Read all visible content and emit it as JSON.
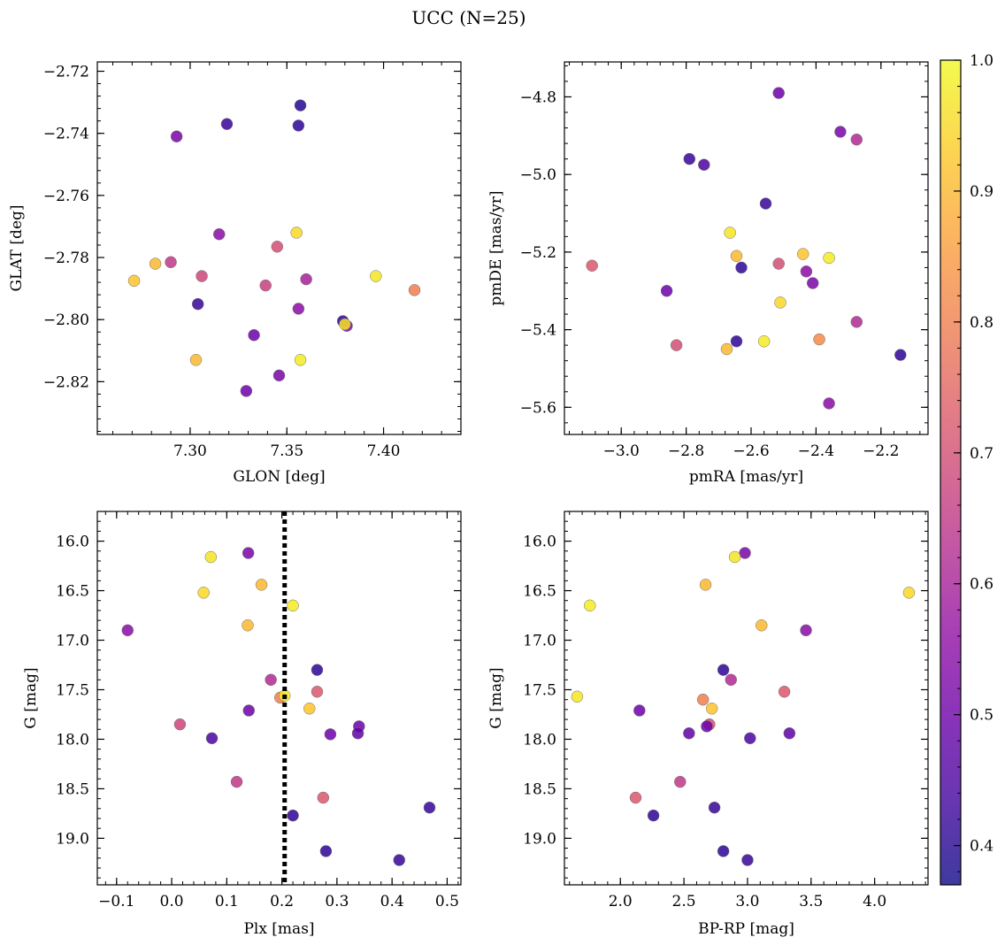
{
  "figure": {
    "title": "UCC (N=25)"
  },
  "colorbar": {
    "range": [
      0.37,
      1.0
    ],
    "ticks": [
      0.4,
      0.5,
      0.6,
      0.7,
      0.8,
      0.9,
      1.0
    ],
    "tick_labels": [
      "0.4",
      "0.5",
      "0.6",
      "0.7",
      "0.8",
      "0.9",
      "1.0"
    ],
    "colormap": "plasma"
  },
  "chart_data": [
    {
      "type": "scatter",
      "xlabel": "GLON [deg]",
      "ylabel": "GLAT [deg]",
      "xlim": [
        7.252,
        7.44
      ],
      "ylim": [
        -2.837,
        -2.717
      ],
      "yinvert": false,
      "xticks": [
        7.3,
        7.35,
        7.4
      ],
      "xtick_labels": [
        "7.30",
        "7.35",
        "7.40"
      ],
      "yticks": [
        -2.72,
        -2.74,
        -2.76,
        -2.78,
        -2.8,
        -2.82
      ],
      "ytick_labels": [
        "−2.72",
        "−2.74",
        "−2.76",
        "−2.78",
        "−2.80",
        "−2.82"
      ],
      "points": [
        {
          "x": 7.357,
          "y": -2.731,
          "c": 0.4
        },
        {
          "x": 7.319,
          "y": -2.737,
          "c": 0.42
        },
        {
          "x": 7.356,
          "y": -2.7375,
          "c": 0.41
        },
        {
          "x": 7.293,
          "y": -2.741,
          "c": 0.52
        },
        {
          "x": 7.315,
          "y": -2.7725,
          "c": 0.55
        },
        {
          "x": 7.355,
          "y": -2.772,
          "c": 0.95
        },
        {
          "x": 7.345,
          "y": -2.7765,
          "c": 0.7
        },
        {
          "x": 7.282,
          "y": -2.782,
          "c": 0.9
        },
        {
          "x": 7.29,
          "y": -2.7815,
          "c": 0.65
        },
        {
          "x": 7.306,
          "y": -2.786,
          "c": 0.68
        },
        {
          "x": 7.271,
          "y": -2.7875,
          "c": 0.92
        },
        {
          "x": 7.396,
          "y": -2.786,
          "c": 0.97
        },
        {
          "x": 7.36,
          "y": -2.787,
          "c": 0.6
        },
        {
          "x": 7.339,
          "y": -2.789,
          "c": 0.67
        },
        {
          "x": 7.416,
          "y": -2.7905,
          "c": 0.8
        },
        {
          "x": 7.304,
          "y": -2.795,
          "c": 0.42
        },
        {
          "x": 7.356,
          "y": -2.7965,
          "c": 0.55
        },
        {
          "x": 7.379,
          "y": -2.8005,
          "c": 0.41
        },
        {
          "x": 7.381,
          "y": -2.802,
          "c": 0.53
        },
        {
          "x": 7.38,
          "y": -2.8015,
          "c": 0.97
        },
        {
          "x": 7.333,
          "y": -2.805,
          "c": 0.5
        },
        {
          "x": 7.303,
          "y": -2.813,
          "c": 0.9
        },
        {
          "x": 7.357,
          "y": -2.813,
          "c": 0.98
        },
        {
          "x": 7.346,
          "y": -2.818,
          "c": 0.52
        },
        {
          "x": 7.329,
          "y": -2.823,
          "c": 0.5
        }
      ]
    },
    {
      "type": "scatter",
      "xlabel": "pmRA [mas/yr]",
      "ylabel": "pmDE [mas/yr]",
      "xlim": [
        -3.175,
        -2.055
      ],
      "ylim": [
        -5.67,
        -4.71
      ],
      "yinvert": false,
      "xticks": [
        -3.0,
        -2.8,
        -2.6,
        -2.4,
        -2.2
      ],
      "xtick_labels": [
        "−3.0",
        "−2.8",
        "−2.6",
        "−2.4",
        "−2.2"
      ],
      "yticks": [
        -4.8,
        -5.0,
        -5.2,
        -5.4,
        -5.6
      ],
      "ytick_labels": [
        "−4.8",
        "−5.0",
        "−5.2",
        "−5.4",
        "−5.6"
      ],
      "points": [
        {
          "x": -2.515,
          "y": -4.79,
          "c": 0.5
        },
        {
          "x": -2.325,
          "y": -4.89,
          "c": 0.52
        },
        {
          "x": -2.275,
          "y": -4.91,
          "c": 0.62
        },
        {
          "x": -2.79,
          "y": -4.96,
          "c": 0.42
        },
        {
          "x": -2.745,
          "y": -4.975,
          "c": 0.45
        },
        {
          "x": -2.555,
          "y": -5.075,
          "c": 0.42
        },
        {
          "x": -2.665,
          "y": -5.15,
          "c": 0.97
        },
        {
          "x": -2.645,
          "y": -5.21,
          "c": 0.9
        },
        {
          "x": -2.44,
          "y": -5.205,
          "c": 0.92
        },
        {
          "x": -2.36,
          "y": -5.215,
          "c": 0.98
        },
        {
          "x": -3.09,
          "y": -5.235,
          "c": 0.72
        },
        {
          "x": -2.515,
          "y": -5.23,
          "c": 0.7
        },
        {
          "x": -2.63,
          "y": -5.24,
          "c": 0.41
        },
        {
          "x": -2.43,
          "y": -5.25,
          "c": 0.55
        },
        {
          "x": -2.41,
          "y": -5.28,
          "c": 0.52
        },
        {
          "x": -2.86,
          "y": -5.3,
          "c": 0.5
        },
        {
          "x": -2.51,
          "y": -5.33,
          "c": 0.95
        },
        {
          "x": -2.275,
          "y": -5.38,
          "c": 0.62
        },
        {
          "x": -2.39,
          "y": -5.425,
          "c": 0.82
        },
        {
          "x": -2.645,
          "y": -5.43,
          "c": 0.41
        },
        {
          "x": -2.56,
          "y": -5.43,
          "c": 0.98
        },
        {
          "x": -2.83,
          "y": -5.44,
          "c": 0.7
        },
        {
          "x": -2.675,
          "y": -5.45,
          "c": 0.9
        },
        {
          "x": -2.14,
          "y": -5.465,
          "c": 0.41
        },
        {
          "x": -2.36,
          "y": -5.59,
          "c": 0.55
        }
      ]
    },
    {
      "type": "scatter",
      "xlabel": "Plx [mas]",
      "ylabel": "G [mag]",
      "xlim": [
        -0.135,
        0.525
      ],
      "ylim": [
        19.47,
        15.7
      ],
      "yinvert": true,
      "vline": {
        "x": 0.205,
        "style": "dotted",
        "color": "#000000"
      },
      "xticks": [
        -0.1,
        0.0,
        0.1,
        0.2,
        0.3,
        0.4,
        0.5
      ],
      "xtick_labels": [
        "−0.1",
        "0.0",
        "0.1",
        "0.2",
        "0.3",
        "0.4",
        "0.5"
      ],
      "yticks": [
        16.0,
        16.5,
        17.0,
        17.5,
        18.0,
        18.5,
        19.0
      ],
      "ytick_labels": [
        "16.0",
        "16.5",
        "17.0",
        "17.5",
        "18.0",
        "18.5",
        "19.0"
      ],
      "points": [
        {
          "x": 0.139,
          "y": 16.12,
          "c": 0.52
        },
        {
          "x": 0.071,
          "y": 16.16,
          "c": 0.97
        },
        {
          "x": 0.163,
          "y": 16.44,
          "c": 0.9
        },
        {
          "x": 0.058,
          "y": 16.52,
          "c": 0.95
        },
        {
          "x": 0.22,
          "y": 16.65,
          "c": 0.98
        },
        {
          "x": 0.138,
          "y": 16.85,
          "c": 0.9
        },
        {
          "x": -0.08,
          "y": 16.9,
          "c": 0.55
        },
        {
          "x": 0.264,
          "y": 17.3,
          "c": 0.41
        },
        {
          "x": 0.18,
          "y": 17.4,
          "c": 0.62
        },
        {
          "x": 0.264,
          "y": 17.52,
          "c": 0.72
        },
        {
          "x": 0.197,
          "y": 17.58,
          "c": 0.8
        },
        {
          "x": 0.205,
          "y": 17.56,
          "c": 0.97
        },
        {
          "x": 0.25,
          "y": 17.69,
          "c": 0.92
        },
        {
          "x": 0.14,
          "y": 17.71,
          "c": 0.5
        },
        {
          "x": 0.015,
          "y": 17.85,
          "c": 0.68
        },
        {
          "x": 0.34,
          "y": 17.87,
          "c": 0.5
        },
        {
          "x": 0.338,
          "y": 17.94,
          "c": 0.48
        },
        {
          "x": 0.288,
          "y": 17.95,
          "c": 0.5
        },
        {
          "x": 0.073,
          "y": 17.99,
          "c": 0.45
        },
        {
          "x": 0.118,
          "y": 18.43,
          "c": 0.65
        },
        {
          "x": 0.275,
          "y": 18.59,
          "c": 0.72
        },
        {
          "x": 0.468,
          "y": 18.69,
          "c": 0.42
        },
        {
          "x": 0.22,
          "y": 18.77,
          "c": 0.41
        },
        {
          "x": 0.28,
          "y": 19.13,
          "c": 0.41
        },
        {
          "x": 0.413,
          "y": 19.22,
          "c": 0.42
        }
      ]
    },
    {
      "type": "scatter",
      "xlabel": "BP-RP [mag]",
      "ylabel": "G [mag]",
      "xlim": [
        1.56,
        4.42
      ],
      "ylim": [
        19.47,
        15.7
      ],
      "yinvert": true,
      "xticks": [
        2.0,
        2.5,
        3.0,
        3.5,
        4.0
      ],
      "xtick_labels": [
        "2.0",
        "2.5",
        "3.0",
        "3.5",
        "4.0"
      ],
      "yticks": [
        16.0,
        16.5,
        17.0,
        17.5,
        18.0,
        18.5,
        19.0
      ],
      "ytick_labels": [
        "16.0",
        "16.5",
        "17.0",
        "17.5",
        "18.0",
        "18.5",
        "19.0"
      ],
      "points": [
        {
          "x": 2.98,
          "y": 16.12,
          "c": 0.52
        },
        {
          "x": 2.9,
          "y": 16.16,
          "c": 0.97
        },
        {
          "x": 2.67,
          "y": 16.44,
          "c": 0.9
        },
        {
          "x": 4.27,
          "y": 16.52,
          "c": 0.95
        },
        {
          "x": 1.76,
          "y": 16.65,
          "c": 0.98
        },
        {
          "x": 3.11,
          "y": 16.85,
          "c": 0.9
        },
        {
          "x": 3.46,
          "y": 16.9,
          "c": 0.55
        },
        {
          "x": 2.81,
          "y": 17.3,
          "c": 0.41
        },
        {
          "x": 2.87,
          "y": 17.4,
          "c": 0.62
        },
        {
          "x": 3.29,
          "y": 17.52,
          "c": 0.72
        },
        {
          "x": 1.66,
          "y": 17.57,
          "c": 0.97
        },
        {
          "x": 2.65,
          "y": 17.6,
          "c": 0.8
        },
        {
          "x": 2.72,
          "y": 17.69,
          "c": 0.92
        },
        {
          "x": 2.15,
          "y": 17.71,
          "c": 0.5
        },
        {
          "x": 2.7,
          "y": 17.85,
          "c": 0.7
        },
        {
          "x": 2.68,
          "y": 17.87,
          "c": 0.5
        },
        {
          "x": 2.54,
          "y": 17.94,
          "c": 0.48
        },
        {
          "x": 3.33,
          "y": 17.94,
          "c": 0.48
        },
        {
          "x": 3.02,
          "y": 17.99,
          "c": 0.45
        },
        {
          "x": 2.47,
          "y": 18.43,
          "c": 0.65
        },
        {
          "x": 2.12,
          "y": 18.59,
          "c": 0.72
        },
        {
          "x": 2.74,
          "y": 18.69,
          "c": 0.42
        },
        {
          "x": 2.26,
          "y": 18.77,
          "c": 0.41
        },
        {
          "x": 2.81,
          "y": 19.13,
          "c": 0.41
        },
        {
          "x": 3.0,
          "y": 19.22,
          "c": 0.42
        }
      ]
    }
  ]
}
